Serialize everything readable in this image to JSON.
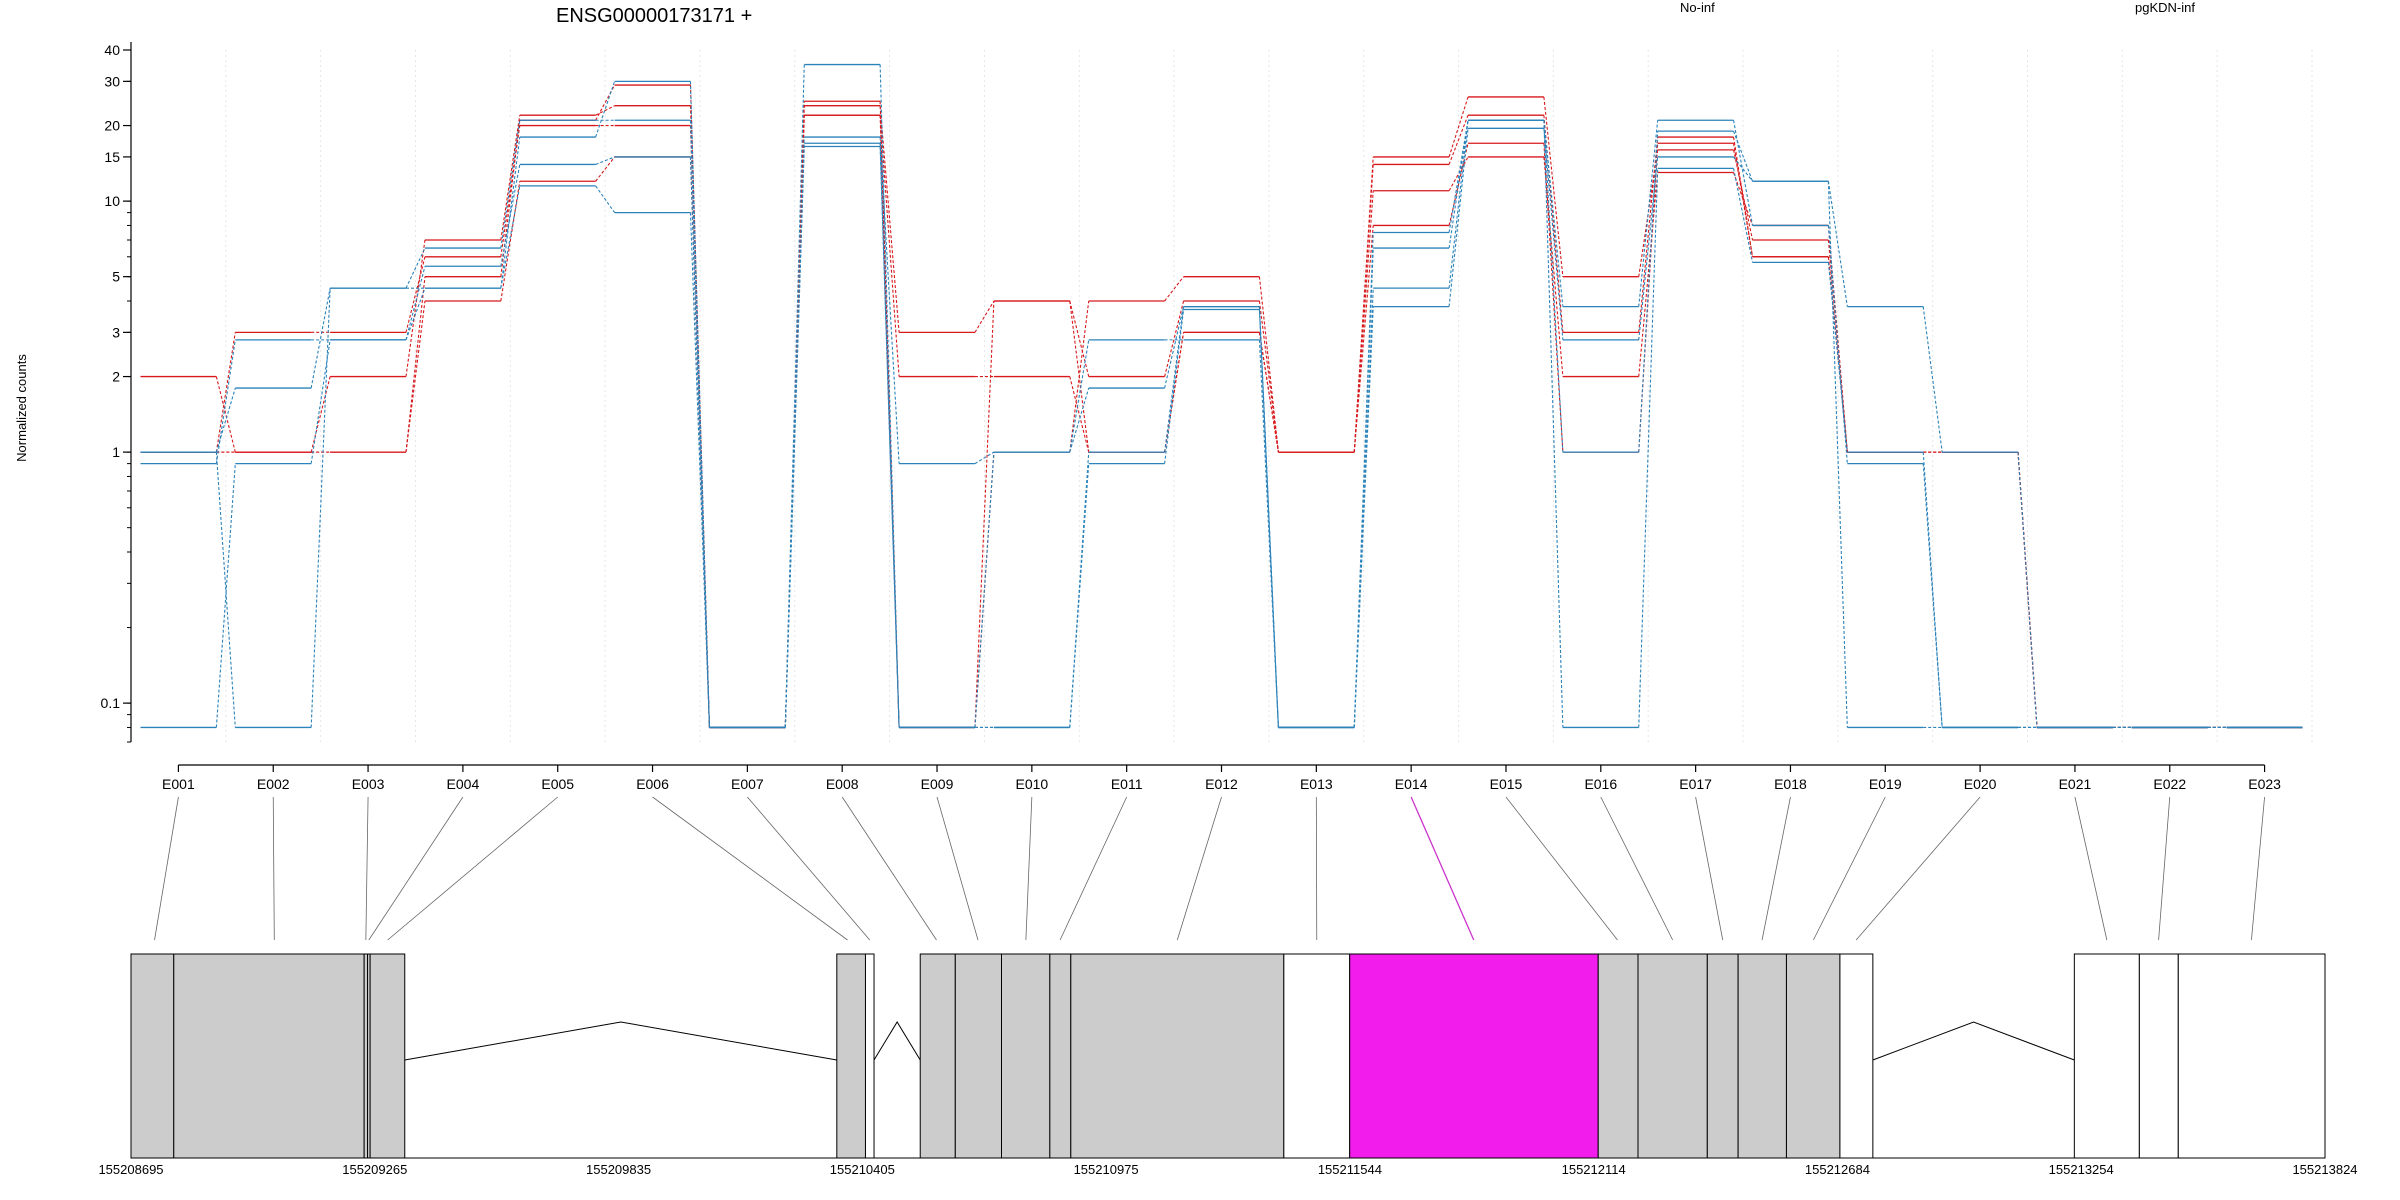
{
  "chart_data": {
    "type": "line",
    "title": "ENSG00000173171 +",
    "ylabel": "Normalized counts",
    "yscale": "log",
    "ylim": [
      0.07,
      40
    ],
    "y_ticks": [
      0.1,
      1,
      2,
      3,
      5,
      10,
      15,
      20,
      30,
      40
    ],
    "categories": [
      "E001",
      "E002",
      "E003",
      "E004",
      "E005",
      "E006",
      "E007",
      "E008",
      "E009",
      "E010",
      "E011",
      "E012",
      "E013",
      "E014",
      "E015",
      "E016",
      "E017",
      "E018",
      "E019",
      "E020",
      "E021",
      "E022",
      "E023"
    ],
    "legend": [
      {
        "label": "No-inf",
        "color": "#d7191c"
      },
      {
        "label": "pgKDN-inf",
        "color": "#2b83ba"
      }
    ],
    "series": [
      {
        "group": "No-inf",
        "values": [
          2,
          1,
          1,
          4,
          12,
          15,
          0.08,
          22,
          2,
          2,
          1,
          3,
          1,
          11,
          15,
          2,
          13,
          8,
          1,
          1,
          0.08,
          0.08,
          0.08
        ]
      },
      {
        "group": "No-inf",
        "values": [
          1,
          3,
          3,
          6,
          20,
          20,
          0.08,
          24,
          3,
          4,
          2,
          4,
          1,
          15,
          26,
          5,
          16,
          7,
          1,
          1,
          0.08,
          0.08,
          0.08
        ]
      },
      {
        "group": "No-inf",
        "values": [
          1,
          1,
          2,
          7,
          22,
          24,
          0.08,
          25,
          0.08,
          1,
          4,
          5,
          1,
          14,
          22,
          3,
          18,
          6,
          1,
          1,
          0.08,
          0.08,
          0.08
        ]
      },
      {
        "group": "No-inf",
        "values": [
          1,
          1,
          1,
          5,
          21,
          29,
          0.08,
          22,
          0.08,
          4,
          1,
          3,
          1,
          8,
          17,
          1,
          17,
          6,
          1,
          1,
          0.08,
          0.08,
          0.08
        ]
      },
      {
        "group": "pgKDN-inf",
        "values": [
          1,
          0.08,
          4.5,
          4.5,
          18,
          30,
          0.08,
          35,
          0.08,
          0.08,
          1,
          3.8,
          0.08,
          7.5,
          21,
          1,
          19,
          12,
          3.8,
          1,
          0.08,
          0.08,
          0.08
        ]
      },
      {
        "group": "pgKDN-inf",
        "values": [
          1,
          1.8,
          4.5,
          6.5,
          21,
          21,
          0.08,
          18,
          0.9,
          1,
          1.8,
          3.8,
          0.08,
          4.5,
          21,
          0.08,
          13.5,
          5.7,
          1,
          0.08,
          0.08,
          0.08,
          0.08
        ]
      },
      {
        "group": "pgKDN-inf",
        "values": [
          0.9,
          2.8,
          2.8,
          4.5,
          11.5,
          9,
          0.08,
          16.5,
          0.08,
          1,
          2.8,
          2.8,
          0.08,
          3.8,
          19.5,
          2.8,
          15,
          12,
          0.08,
          0.08,
          0.08,
          0.08,
          0.08
        ]
      },
      {
        "group": "pgKDN-inf",
        "values": [
          0.08,
          0.9,
          2.8,
          5.5,
          14,
          15,
          0.08,
          17,
          0.08,
          0.08,
          0.9,
          3.7,
          0.08,
          6.5,
          21,
          3.8,
          21,
          8,
          0.9,
          0.08,
          0.08,
          0.08,
          0.08
        ]
      }
    ],
    "genomic_axis": {
      "tick_labels": [
        "155208695",
        "155209265",
        "155209835",
        "155210405",
        "155210975",
        "155211544",
        "155212114",
        "155212684",
        "155213254",
        "155213824"
      ],
      "start": 155208695,
      "end": 155213824
    },
    "exon_blocks": [
      {
        "start": 155208695,
        "end": 155208795,
        "color": "#cccccc"
      },
      {
        "start": 155208795,
        "end": 155209240,
        "color": "#cccccc"
      },
      {
        "start": 155209240,
        "end": 155209248,
        "color": "#cccccc"
      },
      {
        "start": 155209248,
        "end": 155209254,
        "color": "#cccccc"
      },
      {
        "start": 155209254,
        "end": 155209335,
        "color": "#cccccc"
      },
      {
        "start": 155210345,
        "end": 155210412,
        "color": "#cccccc"
      },
      {
        "start": 155210412,
        "end": 155210432,
        "color": "#ffffff"
      },
      {
        "start": 155210540,
        "end": 155210622,
        "color": "#cccccc"
      },
      {
        "start": 155210622,
        "end": 155210730,
        "color": "#cccccc"
      },
      {
        "start": 155210730,
        "end": 155210843,
        "color": "#cccccc"
      },
      {
        "start": 155210843,
        "end": 155210892,
        "color": "#cccccc"
      },
      {
        "start": 155210892,
        "end": 155211390,
        "color": "#cccccc"
      },
      {
        "start": 155211390,
        "end": 155211544,
        "color": "#ffffff"
      },
      {
        "start": 155211544,
        "end": 155212125,
        "color": "#f21cec"
      },
      {
        "start": 155212125,
        "end": 155212218,
        "color": "#cccccc"
      },
      {
        "start": 155212218,
        "end": 155212380,
        "color": "#cccccc"
      },
      {
        "start": 155212380,
        "end": 155212452,
        "color": "#cccccc"
      },
      {
        "start": 155212452,
        "end": 155212565,
        "color": "#cccccc"
      },
      {
        "start": 155212565,
        "end": 155212690,
        "color": "#cccccc"
      },
      {
        "start": 155212690,
        "end": 155212767,
        "color": "#ffffff"
      },
      {
        "start": 155213238,
        "end": 155213390,
        "color": "#ffffff"
      },
      {
        "start": 155213390,
        "end": 155213481,
        "color": "#ffffff"
      },
      {
        "start": 155213481,
        "end": 155213824,
        "color": "#ffffff"
      }
    ],
    "introns": [
      {
        "from": 155209335,
        "to": 155210345
      },
      {
        "from": 155210432,
        "to": 155210540
      },
      {
        "from": 155212767,
        "to": 155213238
      }
    ],
    "highlighted_exon": "E014",
    "highlight_color": "#cc33cc",
    "exon_genomic_midpoints": [
      155208750,
      155209030,
      155209244,
      155209251,
      155209295,
      155210370,
      155210422,
      155210578,
      155210675,
      155210787,
      155210867,
      155211141,
      155211467,
      155211834,
      155212170,
      155212299,
      155212416,
      155212508,
      155212628,
      155212728,
      155213314,
      155213435,
      155213652
    ]
  }
}
